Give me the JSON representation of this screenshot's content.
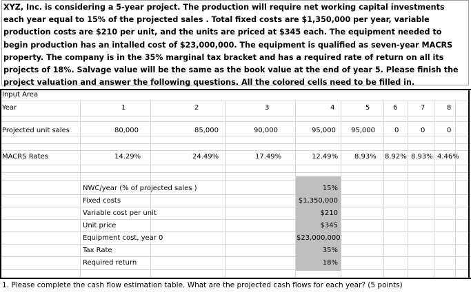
{
  "intro": "XYZ, Inc. is considering a 5-year project. The production will require net working capital investments each year equal to 15% of the projected sales . Total fixed costs are $1,350,000 per year, variable production costs are $210 per unit, and the units are priced at $345 each. The equipment needed to begin production has an intalled cost of $23,000,000. The equipment is qualified as seven-year MACRS property. The company is in the 35% marginal tax bracket and has a required rate of return on all its projects of 18%. Salvage value will be the same as the book value at the end of year 5. Please finish the project valuation and answer the following questions. All the colored cells need to be filled in.",
  "input_area_label": "Input Area",
  "year_label": "Year",
  "years": [
    "1",
    "2",
    "3",
    "4",
    "5",
    "6",
    "7",
    "8"
  ],
  "units_label": "Projected unit sales",
  "units": [
    "80,000",
    "85,000",
    "90,000",
    "95,000",
    "95,000",
    "0",
    "0",
    "0"
  ],
  "macrs_label": "MACRS Rates",
  "macrs": [
    "14.29%",
    "24.49%",
    "17.49%",
    "12.49%",
    "8.93%",
    "8.92%",
    "8.93%",
    "4.46%"
  ],
  "params": [
    {
      "label": "NWC/year (% of projected sales )",
      "value": "15%"
    },
    {
      "label": "Fixed costs",
      "value": "$1,350,000"
    },
    {
      "label": "Variable cost per unit",
      "value": "$210"
    },
    {
      "label": "Unit price",
      "value": "$345"
    },
    {
      "label": "Equipment cost, year 0",
      "value": "$23,000,000"
    },
    {
      "label": "Tax Rate",
      "value": "35%"
    },
    {
      "label": "Required return",
      "value": "18%"
    }
  ],
  "question1": "1. Please complete the cash flow estimation table. What are the projected cash flows for each year? (5 points)"
}
